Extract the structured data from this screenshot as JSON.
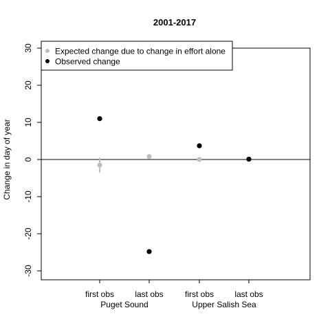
{
  "chart_data": {
    "type": "scatter",
    "title": "2001-2017",
    "ylabel": "Change in day of year",
    "xlabel": "",
    "ylim": [
      -32.5,
      32.5
    ],
    "yticks": [
      -30,
      -20,
      -10,
      0,
      10,
      20,
      30
    ],
    "y_tick_labels": [
      "-30",
      "-20",
      "-10",
      "0",
      "10",
      "20",
      "30"
    ],
    "reference_line": 0,
    "categories": [
      "first obs",
      "last obs",
      "first obs",
      "last obs"
    ],
    "groups": [
      {
        "label": "Puget Sound",
        "members": [
          0,
          1
        ]
      },
      {
        "label": "Upper Salish Sea",
        "members": [
          2,
          3
        ]
      }
    ],
    "series": [
      {
        "name": "Expected change due to change in effort alone",
        "color": "#bebebe",
        "values": [
          -1.5,
          0.8,
          0.0,
          0.0
        ],
        "error_low": [
          -3.5,
          null,
          null,
          null
        ],
        "error_high": [
          0.5,
          null,
          null,
          null
        ]
      },
      {
        "name": "Observed change",
        "color": "#000000",
        "values": [
          11.0,
          -24.8,
          3.7,
          0.1
        ]
      }
    ],
    "legend_position": "top-left",
    "grid": false
  }
}
